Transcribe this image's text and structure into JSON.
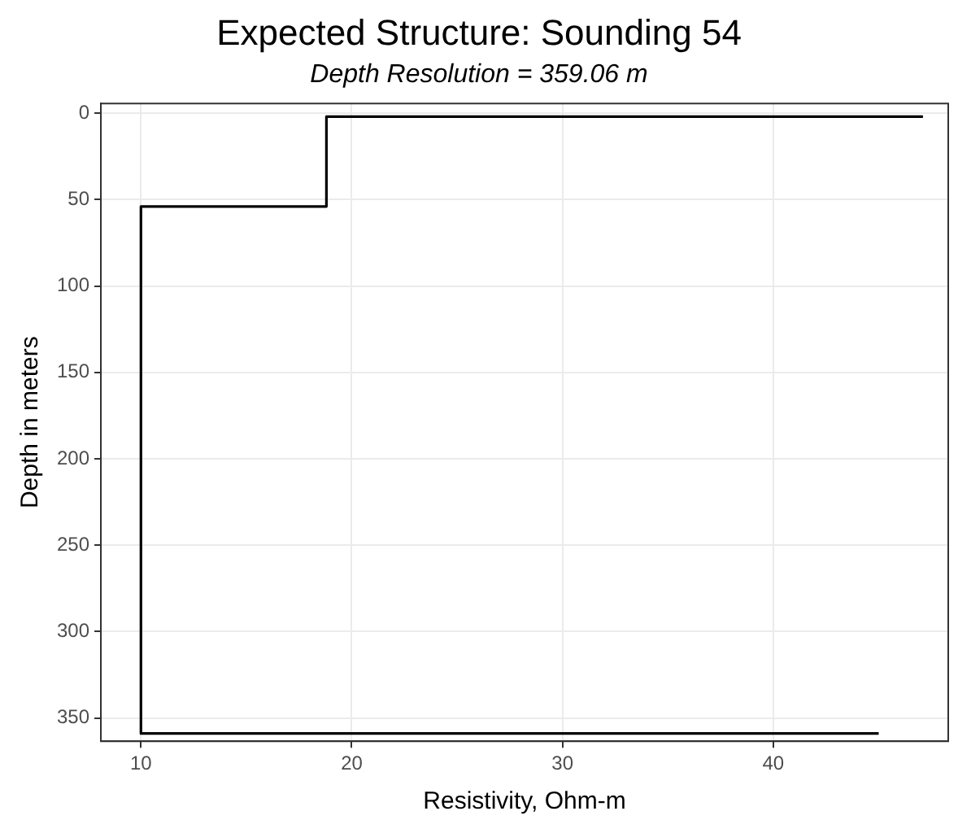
{
  "chart_data": {
    "type": "line",
    "title": "Expected Structure: Sounding 54",
    "subtitle": "Depth Resolution = 359.06 m",
    "xlabel": "Resistivity, Ohm-m",
    "ylabel": "Depth in meters",
    "x": [
      47.1,
      18.8,
      18.8,
      10,
      10,
      45
    ],
    "series": [
      {
        "color": "#000000",
        "values": [
          2,
          2,
          54,
          54,
          359,
          359
        ]
      }
    ],
    "xlim": [
      8.1,
      48.3
    ],
    "xticks": [
      10,
      20,
      30,
      40
    ],
    "ylim": [
      363.5,
      -5.6
    ],
    "yticks": [
      0,
      50,
      100,
      150,
      200,
      250,
      300,
      350
    ],
    "grid": true,
    "marker": "none",
    "line_style": "solid"
  }
}
